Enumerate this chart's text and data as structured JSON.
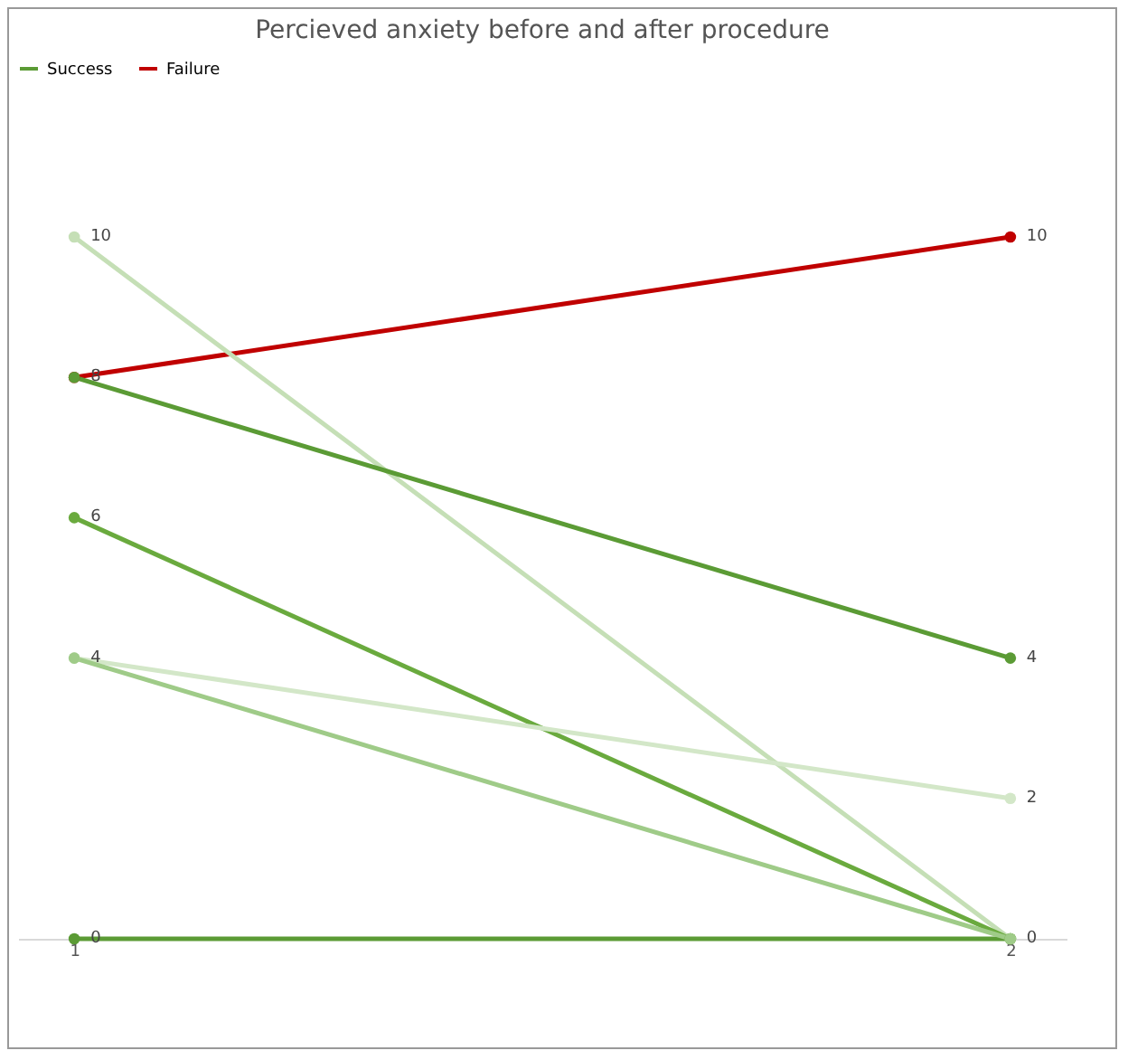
{
  "chart_data": {
    "type": "line",
    "title": "Percieved anxiety before and after procedure",
    "categories": [
      "1",
      "2"
    ],
    "marker": "circle",
    "legend": "top",
    "tick_labels": "x",
    "series": [
      {
        "name": "Success",
        "color": "#5b9b35",
        "values": [
          0,
          0
        ],
        "value_labels": [
          "0",
          "0"
        ]
      },
      {
        "name": "Failure",
        "color": "#c00000",
        "values": [
          8,
          10
        ],
        "value_labels": [
          "8",
          "10"
        ]
      },
      {
        "color": "#c5dfb6",
        "values": [
          10,
          0
        ],
        "value_labels": [
          "10",
          null
        ]
      },
      {
        "color": "#5b9b35",
        "values": [
          8,
          4
        ],
        "value_labels": [
          null,
          "4"
        ]
      },
      {
        "color": "#6aaa3e",
        "values": [
          6,
          0
        ],
        "value_labels": [
          "6",
          null
        ]
      },
      {
        "color": "#d3e7c8",
        "values": [
          4,
          2
        ],
        "value_labels": [
          "4",
          "2"
        ]
      },
      {
        "color": "#9fcb88",
        "values": [
          4,
          0
        ],
        "value_labels": [
          null,
          null
        ]
      }
    ]
  }
}
